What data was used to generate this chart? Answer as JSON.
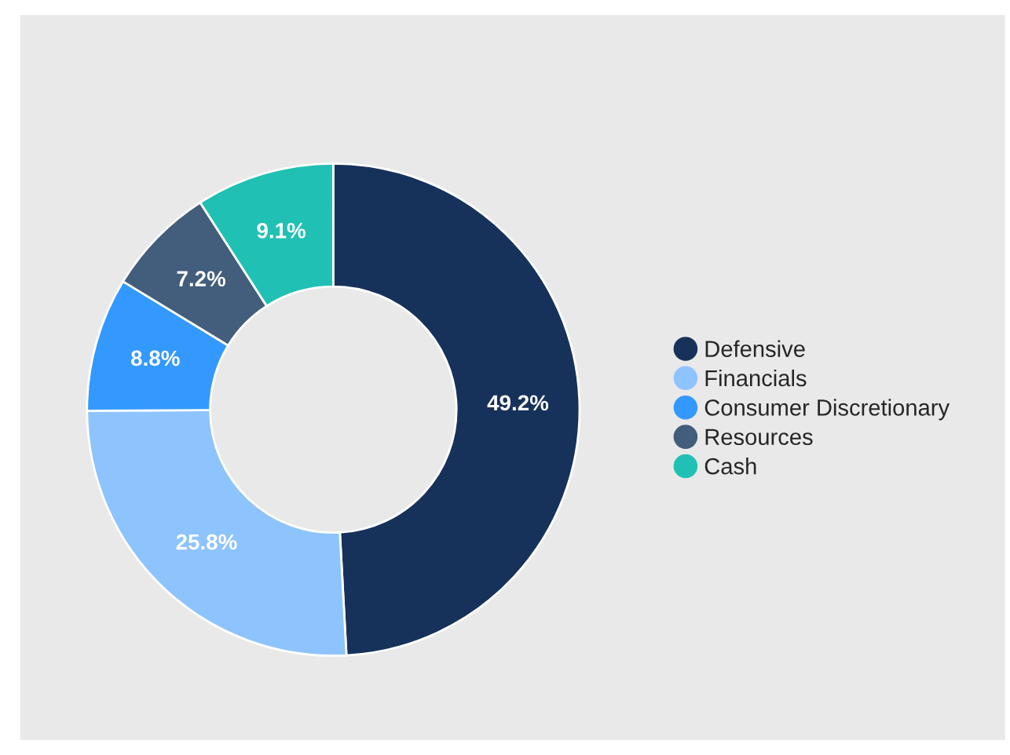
{
  "chart_data": {
    "type": "donut",
    "categories": [
      "Defensive",
      "Financials",
      "Consumer Discretionary",
      "Resources",
      "Cash"
    ],
    "values": [
      49.2,
      25.8,
      8.8,
      7.2,
      9.1
    ],
    "colors": [
      "#17325a",
      "#8ec4fd",
      "#3399fe",
      "#435d7c",
      "#20c1b4"
    ],
    "value_labels": [
      "49.2%",
      "25.8%",
      "8.8%",
      "7.2%",
      "9.1%"
    ],
    "legend": "right"
  }
}
